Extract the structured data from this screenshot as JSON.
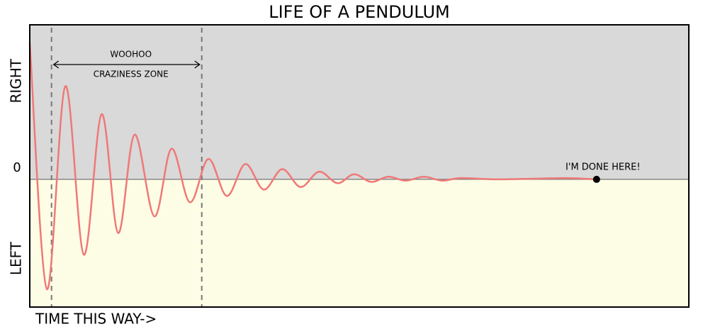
{
  "chart_data": {
    "type": "line",
    "title": "LIFE OF A PENDULUM",
    "x_label": "TIME THIS WAY->",
    "x": [
      0,
      2.6,
      5.4,
      8.2,
      10.9,
      13.4,
      15.9,
      18.9,
      21.5,
      24.3,
      27.1,
      29.9,
      32.7,
      35.5,
      38.3,
      41.1,
      43.9,
      46.7,
      49.2,
      51.8,
      54.4,
      57.0,
      59.8,
      62.6,
      65.4,
      70.8,
      76.1,
      81.5,
      86.0
    ],
    "series": [
      {
        "name": "pendulum",
        "color": "#f07878",
        "values": [
          1.07,
          -0.86,
          0.73,
          -0.59,
          0.51,
          -0.42,
          0.35,
          -0.29,
          0.24,
          -0.18,
          0.16,
          -0.13,
          0.12,
          -0.08,
          0.08,
          -0.06,
          0.06,
          -0.03,
          0.04,
          -0.02,
          0.02,
          -0.01,
          0.02,
          -0.01,
          0.01,
          0,
          0.005,
          0.01,
          0
        ]
      }
    ],
    "xlim": [
      0,
      100
    ],
    "ylim": [
      -1,
      1.21
    ],
    "yticks": [
      {
        "value": 0.77,
        "label": "RIGHT"
      },
      0,
      {
        "value": -0.62,
        "label": "LEFT"
      }
    ],
    "above_color": "#d9d9d9",
    "below_color": "#fdfde5",
    "span": {
      "x": [
        3.3,
        26.1
      ],
      "labels": [
        "WOOHOO",
        "CRAZINESS ZONE"
      ]
    },
    "end_label": "I'M DONE HERE!"
  }
}
